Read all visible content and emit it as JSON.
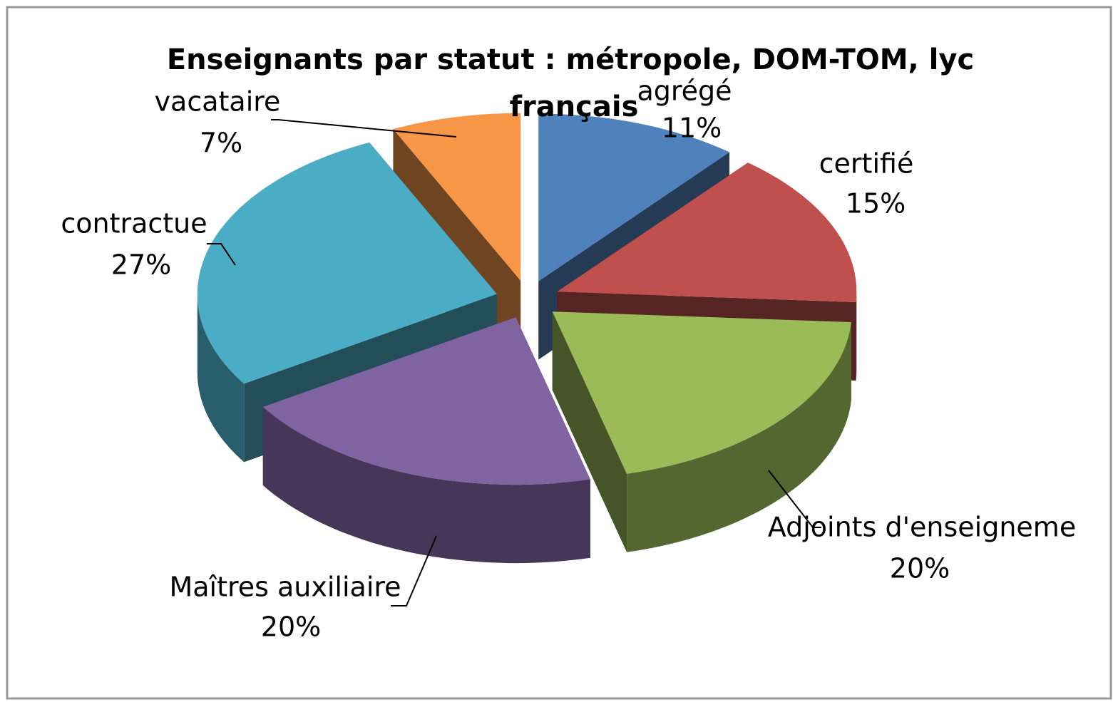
{
  "chart_data": {
    "type": "pie3d",
    "title": [
      "Enseignants par statut : métropole, DOM-TOM, lyc",
      "français"
    ],
    "categories": [
      "agrégé",
      "certifié",
      "Adjoints d'enseigneme",
      "Maîtres auxiliaire",
      "contractue",
      "vacataire"
    ],
    "values": [
      11,
      15,
      20,
      20,
      27,
      7
    ],
    "value_labels": [
      "11%",
      "15%",
      "20%",
      "20%",
      "27%",
      "7%"
    ],
    "colors": [
      "#4f81bd",
      "#c0504d",
      "#9bbb59",
      "#8064a2",
      "#4bacc6",
      "#f79646"
    ]
  }
}
